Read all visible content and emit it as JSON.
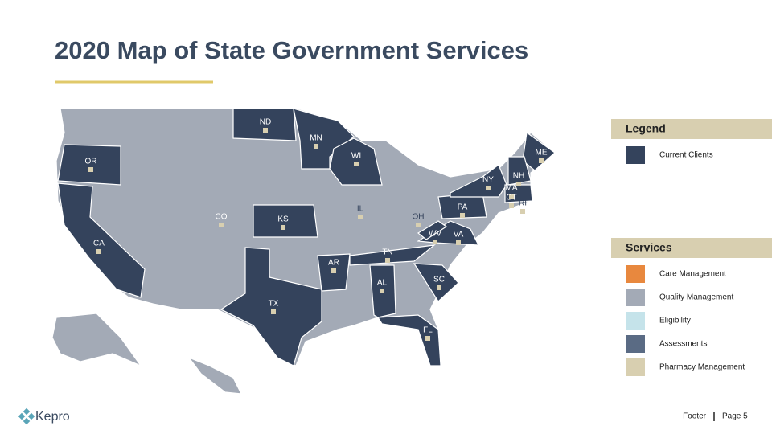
{
  "title": "2020 Map of State Government Services",
  "map": {
    "state_labels": [
      "ND",
      "MN",
      "WI",
      "OR",
      "ME",
      "NY",
      "NH",
      "MA",
      "CT",
      "RI",
      "PA",
      "IL",
      "OH",
      "CO",
      "KS",
      "WV",
      "VA",
      "CA",
      "TN",
      "AR",
      "SC",
      "AL",
      "TX",
      "FL"
    ]
  },
  "legend": {
    "title": "Legend",
    "items": [
      {
        "label": "Current Clients",
        "color": "#34435c"
      }
    ]
  },
  "services": {
    "title": "Services",
    "items": [
      {
        "label": "Care Management",
        "color": "#e8883e"
      },
      {
        "label": "Quality Management",
        "color": "#a3aab6"
      },
      {
        "label": "Eligibility",
        "color": "#c5e3ea"
      },
      {
        "label": "Assessments",
        "color": "#5a6b84"
      },
      {
        "label": "Pharmacy Management",
        "color": "#d8cfb0"
      }
    ]
  },
  "footer": {
    "brand": "Kepro",
    "text": "Footer",
    "page": "Page 5"
  }
}
